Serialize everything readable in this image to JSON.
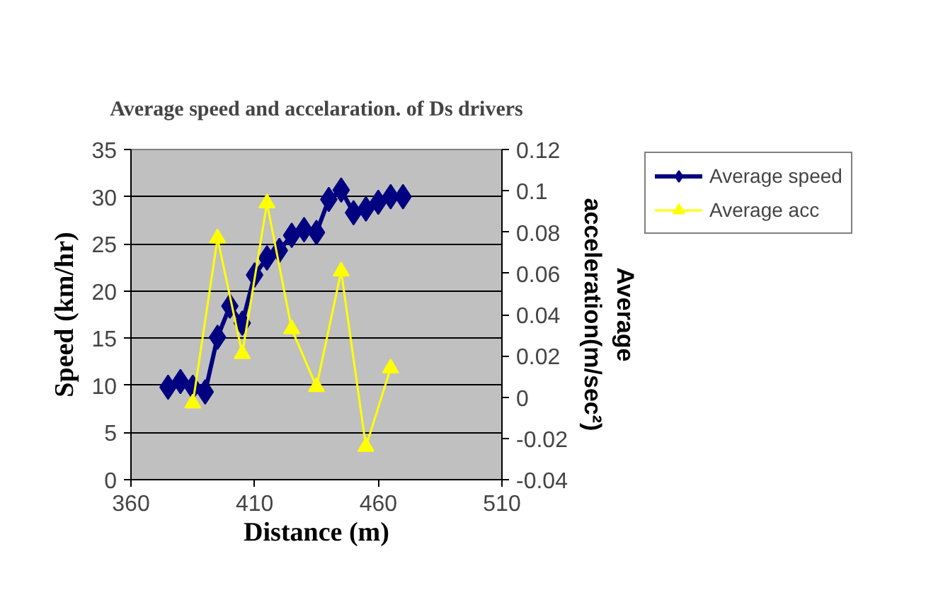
{
  "chart_data": {
    "type": "line",
    "title": "Average speed and accelaration. of Ds drivers",
    "xlabel": "Distance (m)",
    "ylabel": "Speed (km/hr)",
    "y2label": "Average acceleration(m/sec²)",
    "xlim": [
      360,
      510
    ],
    "xticks": [
      360,
      410,
      460,
      510
    ],
    "ylim": [
      0,
      35
    ],
    "yticks": [
      0,
      5,
      10,
      15,
      20,
      25,
      30,
      35
    ],
    "y2lim": [
      -0.04,
      0.12
    ],
    "y2ticks": [
      -0.04,
      -0.02,
      0,
      0.02,
      0.04,
      0.06,
      0.08,
      0.1,
      0.12
    ],
    "grid": "y",
    "legend": "top right",
    "series": [
      {
        "name": "Average speed",
        "color": "#000080",
        "marker": "diamond",
        "x": [
          375,
          380,
          385,
          390,
          395,
          400,
          405,
          410,
          415,
          420,
          425,
          430,
          435,
          440,
          445,
          450,
          455,
          460,
          465,
          470
        ],
        "values": [
          9.8,
          10.4,
          9.8,
          9.3,
          15.1,
          18.4,
          16.6,
          21.7,
          23.5,
          24.3,
          25.9,
          26.5,
          26.2,
          29.7,
          30.7,
          28.3,
          28.7,
          29.4,
          30.0,
          30.0
        ]
      },
      {
        "name": "Average acc",
        "color": "#ffff00",
        "marker": "triangle",
        "axis": "y2",
        "x": [
          385,
          395,
          405,
          415,
          425,
          435,
          445,
          455,
          465
        ],
        "values": [
          -0.003,
          0.077,
          0.021,
          0.094,
          0.033,
          0.005,
          0.061,
          -0.024,
          0.014
        ]
      }
    ]
  }
}
